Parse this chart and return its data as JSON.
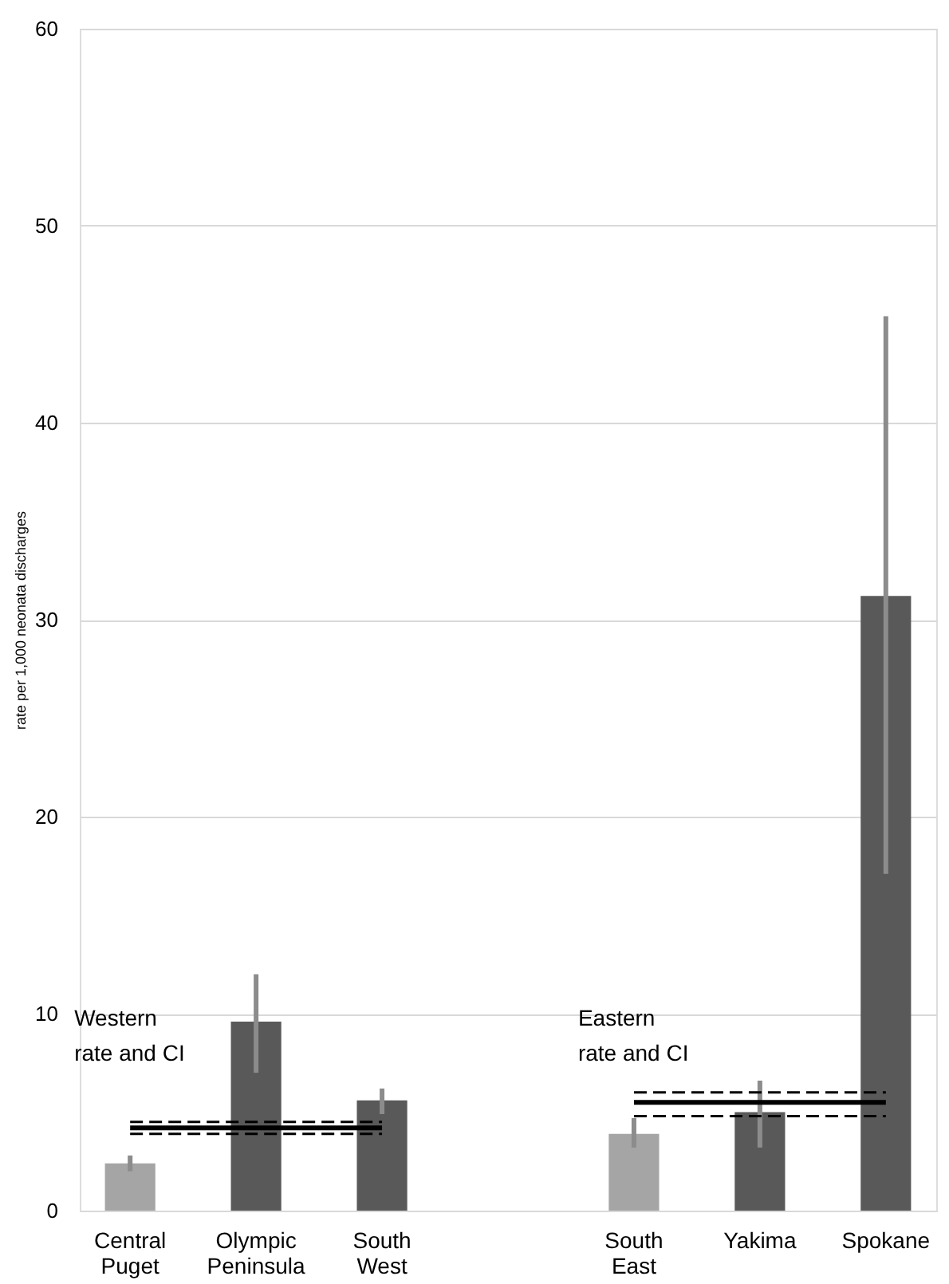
{
  "chart_data": {
    "type": "bar",
    "ylabel": "rate per 1,000 neonata discharges",
    "categories": [
      "Central Puget",
      "Olympic Peninsula",
      "South West",
      null,
      "South East",
      "Yakima",
      "Spokane"
    ],
    "values": [
      2.4,
      9.6,
      5.6,
      null,
      3.9,
      5.0,
      31.2
    ],
    "colors": [
      "#a5a5a5",
      "#595959",
      "#595959",
      "#595959",
      "#a5a5a5",
      "#595959",
      "#595959"
    ],
    "errors": [
      [
        2.0,
        2.8
      ],
      [
        7.0,
        12.0
      ],
      [
        4.9,
        6.2
      ],
      null,
      [
        3.2,
        4.7
      ],
      [
        3.2,
        6.6
      ],
      [
        17.1,
        45.4
      ]
    ],
    "series": [
      {
        "type": "line",
        "color": "#000000",
        "line_style": "solid",
        "values": [
          4.2,
          4.2,
          4.2,
          null,
          null,
          null,
          null
        ]
      },
      {
        "type": "line",
        "color": "#000000",
        "line_style": "dashed",
        "values": [
          4.5,
          4.5,
          4.5,
          null,
          null,
          null,
          null
        ]
      },
      {
        "type": "line",
        "color": "#000000",
        "line_style": "dashed",
        "values": [
          3.9,
          3.9,
          3.9,
          null,
          null,
          null,
          null
        ]
      },
      {
        "type": "line",
        "color": "#000000",
        "line_style": "solid",
        "values": [
          null,
          null,
          null,
          null,
          5.5,
          5.5,
          5.5
        ]
      },
      {
        "type": "line",
        "color": "#000000",
        "line_style": "dashed",
        "values": [
          null,
          null,
          null,
          null,
          6.0,
          6.0,
          6.0
        ]
      },
      {
        "type": "line",
        "color": "#000000",
        "line_style": "dashed",
        "values": [
          null,
          null,
          null,
          null,
          4.8,
          4.8,
          4.8
        ]
      }
    ],
    "annotations": [
      "Western rate and CI",
      "Eastern rate and CI"
    ],
    "ylim": [
      0,
      60
    ],
    "yticks": [
      0,
      10,
      20,
      30,
      40,
      50,
      60
    ],
    "grid": "y"
  }
}
